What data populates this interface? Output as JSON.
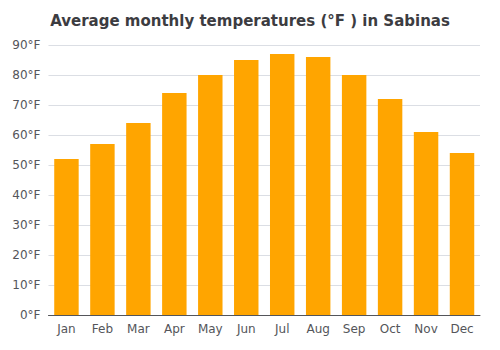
{
  "chart_data": {
    "type": "bar",
    "title": "Average monthly temperatures (°F ) in Sabinas",
    "categories": [
      "Jan",
      "Feb",
      "Mar",
      "Apr",
      "May",
      "Jun",
      "Jul",
      "Aug",
      "Sep",
      "Oct",
      "Nov",
      "Dec"
    ],
    "values": [
      52,
      57,
      64,
      74,
      80,
      85,
      87,
      86,
      80,
      72,
      61,
      54
    ],
    "color": "#FFA500",
    "ylim": [
      0,
      90
    ],
    "yticks": [
      {
        "value": 0,
        "label": "0°F"
      },
      {
        "value": 10,
        "label": "10°F"
      },
      {
        "value": 20,
        "label": "20°F"
      },
      {
        "value": 30,
        "label": "30°F"
      },
      {
        "value": 40,
        "label": "40°F"
      },
      {
        "value": 50,
        "label": "50°F"
      },
      {
        "value": 60,
        "label": "60°F"
      },
      {
        "value": 70,
        "label": "70°F"
      },
      {
        "value": 80,
        "label": "80°F"
      },
      {
        "value": 90,
        "label": "90°F"
      }
    ],
    "grid": true
  }
}
